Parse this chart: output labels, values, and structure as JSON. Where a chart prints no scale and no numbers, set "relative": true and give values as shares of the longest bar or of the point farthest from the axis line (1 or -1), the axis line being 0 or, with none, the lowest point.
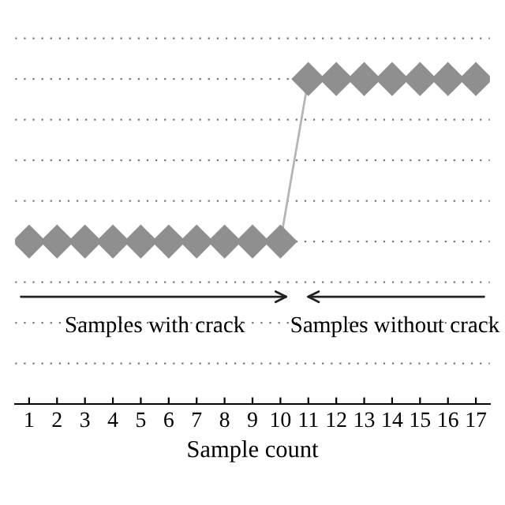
{
  "chart_data": {
    "type": "line",
    "xlabel": "Sample count",
    "x": [
      1,
      2,
      3,
      4,
      5,
      6,
      7,
      8,
      9,
      10,
      11,
      12,
      13,
      14,
      15,
      16,
      17
    ],
    "series": [
      {
        "color": "#8f8f8f",
        "values": [
          0.5,
          0.5,
          0.5,
          0.5,
          0.5,
          0.5,
          0.5,
          0.5,
          0.5,
          0.5,
          1,
          1,
          1,
          1,
          1,
          1,
          1
        ]
      }
    ],
    "relative": true,
    "xlim": [
      0.5,
      17.5
    ],
    "xticks": [
      1,
      2,
      3,
      4,
      5,
      6,
      7,
      8,
      9,
      10,
      11,
      12,
      13,
      14,
      15,
      16,
      17
    ],
    "marker": "diamond",
    "grid": "y",
    "annotations": [
      "Samples with crack",
      "Samples without crack"
    ]
  }
}
